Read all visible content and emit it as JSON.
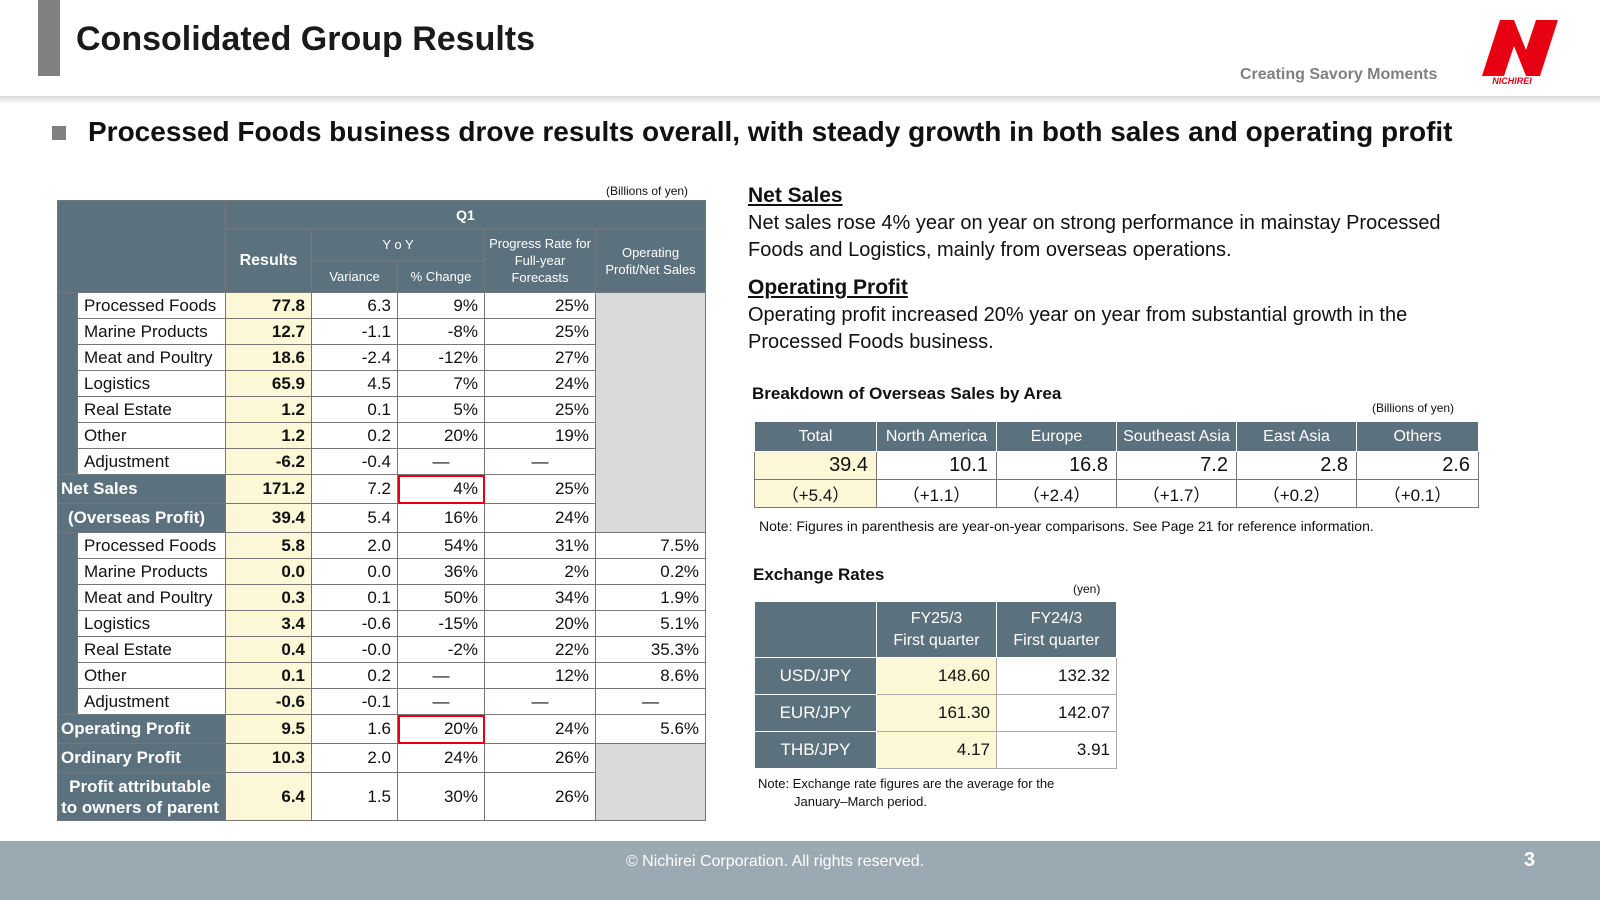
{
  "header": {
    "title": "Consolidated Group Results",
    "tagline": "Creating Savory Moments",
    "logo_text": "NICHIREI",
    "brand_color": "#e60012"
  },
  "headline": "Processed Foods business drove results overall, with steady growth in both sales and operating profit",
  "main_table": {
    "unit": "(Billions of  yen)",
    "period": "Q1",
    "col_results": "Results",
    "col_yoy": "Y o Y",
    "col_variance": "Variance",
    "col_pct": "% Change",
    "col_progress": "Progress Rate for Full-year Forecasts",
    "col_margin": "Operating Profit/Net Sales",
    "sales_rows": [
      {
        "label": "Processed Foods",
        "results": "77.8",
        "variance": "6.3",
        "pct": "9%",
        "progress": "25%"
      },
      {
        "label": "Marine Products",
        "results": "12.7",
        "variance": "-1.1",
        "pct": "-8%",
        "progress": "25%"
      },
      {
        "label": "Meat and  Poultry",
        "results": "18.6",
        "variance": "-2.4",
        "pct": "-12%",
        "progress": "27%"
      },
      {
        "label": "Logistics",
        "results": "65.9",
        "variance": "4.5",
        "pct": "7%",
        "progress": "24%"
      },
      {
        "label": "Real  Estate",
        "results": "1.2",
        "variance": "0.1",
        "pct": "5%",
        "progress": "25%"
      },
      {
        "label": "Other",
        "results": "1.2",
        "variance": "0.2",
        "pct": "20%",
        "progress": "19%"
      },
      {
        "label": "Adjustment",
        "results": "-6.2",
        "variance": "-0.4",
        "pct": "—",
        "progress": "—"
      }
    ],
    "net_sales": {
      "label": "Net Sales",
      "results": "171.2",
      "variance": "7.2",
      "pct": "4%",
      "progress": "25%"
    },
    "overseas_profit": {
      "label": "(Overseas Profit)",
      "results": "39.4",
      "variance": "5.4",
      "pct": "16%",
      "progress": "24%"
    },
    "profit_rows": [
      {
        "label": "Processed Foods",
        "results": "5.8",
        "variance": "2.0",
        "pct": "54%",
        "progress": "31%",
        "margin": "7.5%"
      },
      {
        "label": "Marine Products",
        "results": "0.0",
        "variance": "0.0",
        "pct": "36%",
        "progress": "2%",
        "margin": "0.2%"
      },
      {
        "label": "Meat and  Poultry",
        "results": "0.3",
        "variance": "0.1",
        "pct": "50%",
        "progress": "34%",
        "margin": "1.9%"
      },
      {
        "label": "Logistics",
        "results": "3.4",
        "variance": "-0.6",
        "pct": "-15%",
        "progress": "20%",
        "margin": "5.1%"
      },
      {
        "label": "Real  Estate",
        "results": "0.4",
        "variance": "-0.0",
        "pct": "-2%",
        "progress": "22%",
        "margin": "35.3%"
      },
      {
        "label": "Other",
        "results": "0.1",
        "variance": "0.2",
        "pct": "—",
        "progress": "12%",
        "margin": "8.6%"
      },
      {
        "label": "Adjustment",
        "results": "-0.6",
        "variance": "-0.1",
        "pct": "—",
        "progress": "—",
        "margin": "—"
      }
    ],
    "operating_profit": {
      "label": "Operating Profit",
      "results": "9.5",
      "variance": "1.6",
      "pct": "20%",
      "progress": "24%",
      "margin": "5.6%"
    },
    "ordinary_profit": {
      "label": "Ordinary Profit",
      "results": "10.3",
      "variance": "2.0",
      "pct": "24%",
      "progress": "26%"
    },
    "profit_parent": {
      "label": "Profit attributable to owners of parent",
      "results": "6.4",
      "variance": "1.5",
      "pct": "30%",
      "progress": "26%"
    }
  },
  "net_sales_section": {
    "heading": "Net Sales",
    "text": "Net sales rose 4% year on year on strong performance in mainstay Processed Foods and Logistics, mainly from overseas operations."
  },
  "op_profit_section": {
    "heading": "Operating Profit",
    "text": "Operating profit increased 20% year on year from substantial growth in the Processed Foods business."
  },
  "overseas": {
    "title": "Breakdown of Overseas Sales by Area",
    "unit": "(Billions of  yen)",
    "headers": [
      "Total",
      "North America",
      "Europe",
      "Southeast Asia",
      "East Asia",
      "Others"
    ],
    "values": [
      "39.4",
      "10.1",
      "16.8",
      "7.2",
      "2.8",
      "2.6"
    ],
    "changes": [
      "（+5.4）",
      "（+1.1）",
      "（+2.4）",
      "（+1.7）",
      "（+0.2）",
      "（+0.1）"
    ],
    "note": "Note: Figures in parenthesis are year-on-year comparisons. See Page 21 for reference information."
  },
  "fx": {
    "title": "Exchange Rates",
    "unit": "(yen)",
    "col1_line1": "FY25/3",
    "col1_line2": "First quarter",
    "col2_line1": "FY24/3",
    "col2_line2": "First quarter",
    "rows": [
      {
        "pair": "USD/JPY",
        "current": "148.60",
        "prior": "132.32"
      },
      {
        "pair": "EUR/JPY",
        "current": "161.30",
        "prior": "142.07"
      },
      {
        "pair": "THB/JPY",
        "current": "4.17",
        "prior": "3.91"
      }
    ],
    "note_line1": "Note: Exchange rate figures are the average for the",
    "note_line2": "January–March period."
  },
  "footer": {
    "copyright": "© Nichirei Corporation. All rights reserved.",
    "page": "3"
  }
}
